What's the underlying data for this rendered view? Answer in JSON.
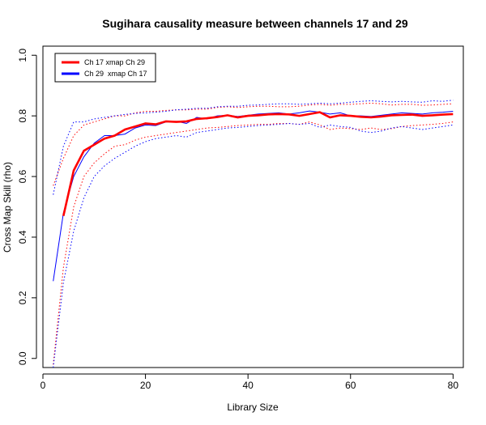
{
  "chart_data": {
    "type": "line",
    "title": "Sugihara causality measure between channels  17 and 29",
    "xlabel": "Library Size",
    "ylabel": "Cross Map Skill (rho)",
    "xlim": [
      0,
      82
    ],
    "ylim": [
      -0.03,
      1.03
    ],
    "xticks": [
      0,
      20,
      40,
      60,
      80
    ],
    "yticks": [
      0.0,
      0.2,
      0.4,
      0.6,
      0.8,
      1.0
    ],
    "xtick_labels": [
      "0",
      "20",
      "40",
      "60",
      "80"
    ],
    "ytick_labels": [
      "0.0",
      "0.2",
      "0.4",
      "0.6",
      "0.8",
      "1.0"
    ],
    "grid": false,
    "legend_position": "top-left",
    "legend": [
      {
        "label": "Ch 17 xmap Ch 29",
        "color": "#ff0000"
      },
      {
        "label": "Ch 29  xmap Ch 17",
        "color": "#0000ff"
      }
    ],
    "series": [
      {
        "name": "Ch 17 xmap Ch 29",
        "color": "#ff0000",
        "style": "solid-thick",
        "x": [
          4,
          6,
          8,
          10,
          12,
          14,
          16,
          18,
          20,
          22,
          24,
          26,
          28,
          30,
          32,
          34,
          36,
          38,
          40,
          42,
          44,
          46,
          48,
          50,
          52,
          54,
          56,
          58,
          60,
          62,
          64,
          66,
          68,
          70,
          72,
          74,
          76,
          78,
          80
        ],
        "y": [
          0.47,
          0.62,
          0.685,
          0.705,
          0.725,
          0.735,
          0.755,
          0.765,
          0.775,
          0.772,
          0.782,
          0.78,
          0.782,
          0.79,
          0.792,
          0.796,
          0.802,
          0.795,
          0.8,
          0.802,
          0.805,
          0.806,
          0.805,
          0.8,
          0.806,
          0.812,
          0.795,
          0.802,
          0.8,
          0.797,
          0.795,
          0.798,
          0.802,
          0.803,
          0.804,
          0.8,
          0.802,
          0.804,
          0.806
        ]
      },
      {
        "name": "Ch 29  xmap Ch 17",
        "color": "#0000ff",
        "style": "solid-thin",
        "x": [
          2,
          4,
          6,
          8,
          10,
          12,
          14,
          16,
          18,
          20,
          22,
          24,
          26,
          28,
          30,
          32,
          34,
          36,
          38,
          40,
          42,
          44,
          46,
          48,
          50,
          52,
          54,
          56,
          58,
          60,
          62,
          64,
          66,
          68,
          70,
          72,
          74,
          76,
          78,
          80
        ],
        "y": [
          0.255,
          0.48,
          0.6,
          0.665,
          0.71,
          0.735,
          0.735,
          0.74,
          0.76,
          0.77,
          0.768,
          0.78,
          0.782,
          0.775,
          0.795,
          0.79,
          0.8,
          0.802,
          0.798,
          0.802,
          0.806,
          0.808,
          0.81,
          0.806,
          0.81,
          0.816,
          0.812,
          0.806,
          0.81,
          0.8,
          0.8,
          0.798,
          0.802,
          0.806,
          0.81,
          0.808,
          0.806,
          0.81,
          0.812,
          0.815
        ]
      },
      {
        "name": "",
        "color": "#ff0000",
        "style": "dotted",
        "x": [
          2,
          4,
          6,
          8,
          10,
          12,
          14,
          16,
          18,
          20,
          22,
          24,
          26,
          28,
          30,
          32,
          34,
          36,
          38,
          40,
          42,
          44,
          46,
          48,
          50,
          52,
          54,
          56,
          58,
          60,
          62,
          64,
          66,
          68,
          70,
          72,
          74,
          76,
          78,
          80
        ],
        "y": [
          0.57,
          0.66,
          0.735,
          0.77,
          0.78,
          0.79,
          0.8,
          0.8,
          0.81,
          0.815,
          0.815,
          0.818,
          0.82,
          0.82,
          0.822,
          0.822,
          0.828,
          0.83,
          0.828,
          0.83,
          0.832,
          0.832,
          0.83,
          0.83,
          0.832,
          0.836,
          0.838,
          0.835,
          0.838,
          0.838,
          0.84,
          0.842,
          0.84,
          0.836,
          0.838,
          0.838,
          0.835,
          0.836,
          0.838,
          0.84
        ]
      },
      {
        "name": "",
        "color": "#ff0000",
        "style": "dotted",
        "x": [
          2,
          4,
          6,
          8,
          10,
          12,
          14,
          16,
          18,
          20,
          22,
          24,
          26,
          28,
          30,
          32,
          34,
          36,
          38,
          40,
          42,
          44,
          46,
          48,
          50,
          52,
          54,
          56,
          58,
          60,
          62,
          64,
          66,
          68,
          70,
          72,
          74,
          76,
          78,
          80
        ],
        "y": [
          -0.02,
          0.3,
          0.5,
          0.6,
          0.645,
          0.675,
          0.7,
          0.705,
          0.72,
          0.73,
          0.735,
          0.74,
          0.745,
          0.75,
          0.755,
          0.76,
          0.762,
          0.765,
          0.768,
          0.77,
          0.772,
          0.772,
          0.775,
          0.775,
          0.772,
          0.78,
          0.77,
          0.755,
          0.76,
          0.758,
          0.755,
          0.76,
          0.755,
          0.758,
          0.765,
          0.768,
          0.77,
          0.772,
          0.775,
          0.78
        ]
      },
      {
        "name": "",
        "color": "#0000ff",
        "style": "dotted",
        "x": [
          2,
          4,
          6,
          8,
          10,
          12,
          14,
          16,
          18,
          20,
          22,
          24,
          26,
          28,
          30,
          32,
          34,
          36,
          38,
          40,
          42,
          44,
          46,
          48,
          50,
          52,
          54,
          56,
          58,
          60,
          62,
          64,
          66,
          68,
          70,
          72,
          74,
          76,
          78,
          80
        ],
        "y": [
          0.54,
          0.7,
          0.78,
          0.78,
          0.79,
          0.795,
          0.8,
          0.805,
          0.808,
          0.81,
          0.812,
          0.815,
          0.82,
          0.822,
          0.825,
          0.825,
          0.83,
          0.832,
          0.832,
          0.835,
          0.836,
          0.838,
          0.84,
          0.84,
          0.838,
          0.84,
          0.842,
          0.84,
          0.842,
          0.845,
          0.848,
          0.85,
          0.848,
          0.846,
          0.848,
          0.846,
          0.845,
          0.85,
          0.848,
          0.852
        ]
      },
      {
        "name": "",
        "color": "#0000ff",
        "style": "dotted",
        "x": [
          2,
          4,
          6,
          8,
          10,
          12,
          14,
          16,
          18,
          20,
          22,
          24,
          26,
          28,
          30,
          32,
          34,
          36,
          38,
          40,
          42,
          44,
          46,
          48,
          50,
          52,
          54,
          56,
          58,
          60,
          62,
          64,
          66,
          68,
          70,
          72,
          74,
          76,
          78,
          80
        ],
        "y": [
          -0.03,
          0.25,
          0.42,
          0.53,
          0.6,
          0.635,
          0.66,
          0.68,
          0.7,
          0.715,
          0.725,
          0.73,
          0.735,
          0.73,
          0.745,
          0.75,
          0.755,
          0.76,
          0.762,
          0.765,
          0.768,
          0.77,
          0.772,
          0.775,
          0.772,
          0.775,
          0.762,
          0.77,
          0.765,
          0.762,
          0.75,
          0.745,
          0.75,
          0.76,
          0.765,
          0.76,
          0.755,
          0.76,
          0.765,
          0.77
        ]
      }
    ]
  }
}
